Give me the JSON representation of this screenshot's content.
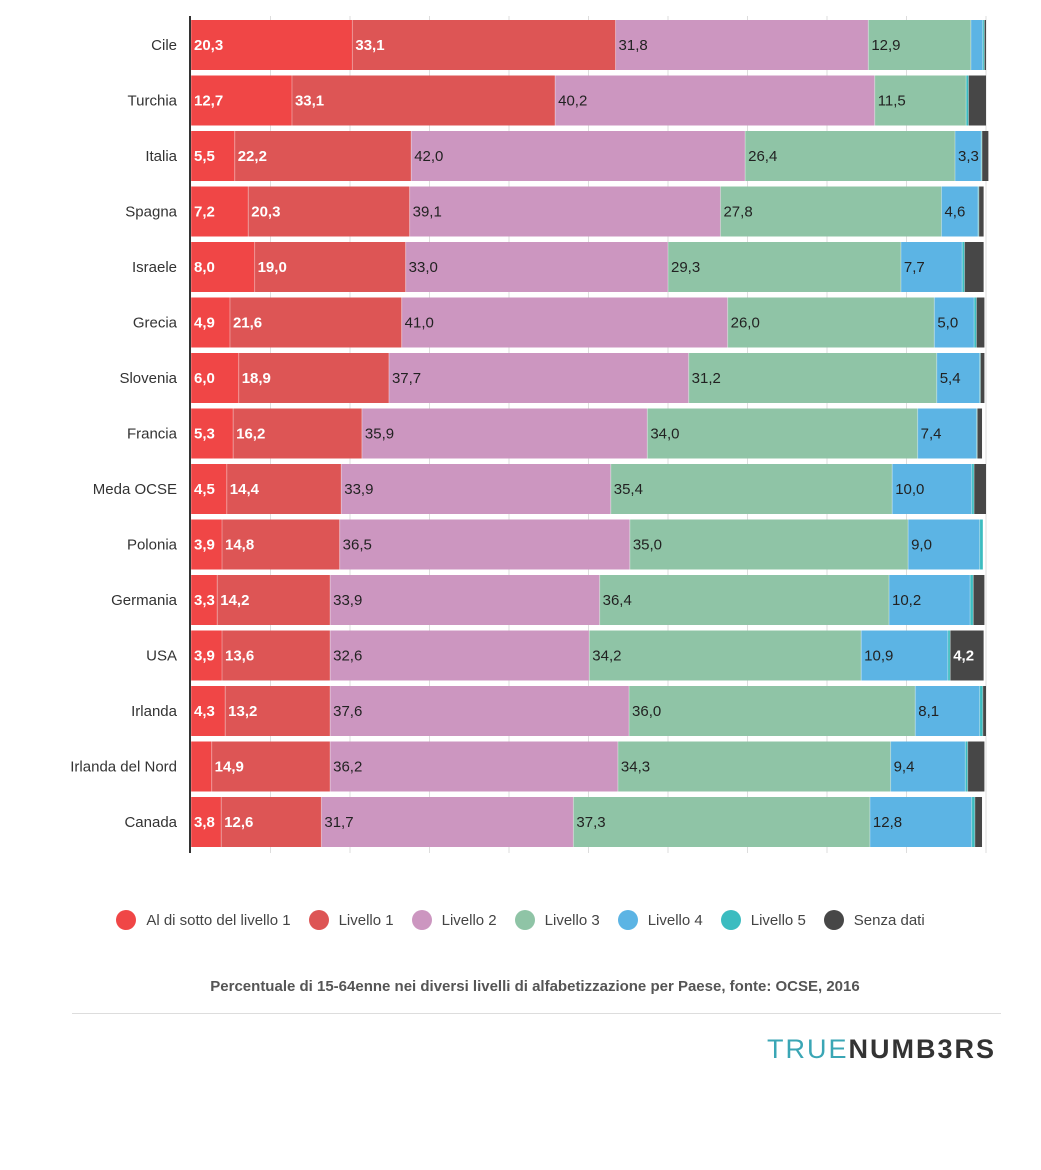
{
  "chart_data": {
    "type": "bar",
    "orientation": "horizontal",
    "stacked": true,
    "title": "",
    "caption": "Percentuale di 15-64enne nei diversi livelli di alfabetizzazione per Paese, fonte: OCSE, 2016",
    "xlabel": "",
    "ylabel": "",
    "xlim": [
      0,
      100
    ],
    "grid": true,
    "legend_position": "bottom",
    "categories": [
      "Cile",
      "Turchia",
      "Italia",
      "Spagna",
      "Israele",
      "Grecia",
      "Slovenia",
      "Francia",
      "Meda OCSE",
      "Polonia",
      "Germania",
      "USA",
      "Irlanda",
      "Irlanda del Nord",
      "Canada"
    ],
    "series": [
      {
        "name": "Al di sotto del livello 1",
        "color": "#f04646",
        "label_color": "#ffffff",
        "values": [
          20.3,
          12.7,
          5.5,
          7.2,
          8.0,
          4.9,
          6.0,
          5.3,
          4.5,
          3.9,
          3.3,
          3.9,
          4.3,
          2.6,
          3.8
        ],
        "labels": [
          "20,3",
          "12,7",
          "5,5",
          "7,2",
          "8,0",
          "4,9",
          "6,0",
          "5,3",
          "4,5",
          "3,9",
          "3,3",
          "3,9",
          "4,3",
          "",
          "3,8"
        ]
      },
      {
        "name": "Livello 1",
        "color": "#dd5555",
        "label_color": "#ffffff",
        "values": [
          33.1,
          33.1,
          22.2,
          20.3,
          19.0,
          21.6,
          18.9,
          16.2,
          14.4,
          14.8,
          14.2,
          13.6,
          13.2,
          14.9,
          12.6
        ],
        "labels": [
          "33,1",
          "33,1",
          "22,2",
          "20,3",
          "19,0",
          "21,6",
          "18,9",
          "16,2",
          "14,4",
          "14,8",
          "14,2",
          "13,6",
          "13,2",
          "14,9",
          "12,6"
        ]
      },
      {
        "name": "Livello 2",
        "color": "#cc96c0",
        "label_color": "#222222",
        "values": [
          31.8,
          40.2,
          42.0,
          39.1,
          33.0,
          41.0,
          37.7,
          35.9,
          33.9,
          36.5,
          33.9,
          32.6,
          37.6,
          36.2,
          31.7
        ],
        "labels": [
          "31,8",
          "40,2",
          "42,0",
          "39,1",
          "33,0",
          "41,0",
          "37,7",
          "35,9",
          "33,9",
          "36,5",
          "33,9",
          "32,6",
          "37,6",
          "36,2",
          "31,7"
        ]
      },
      {
        "name": "Livello 3",
        "color": "#8fc4a6",
        "label_color": "#222222",
        "values": [
          12.9,
          11.5,
          26.4,
          27.8,
          29.3,
          26.0,
          31.2,
          34.0,
          35.4,
          35.0,
          36.4,
          34.2,
          36.0,
          34.3,
          37.3
        ],
        "labels": [
          "12,9",
          "11,5",
          "26,4",
          "27,8",
          "29,3",
          "26,0",
          "31,2",
          "34,0",
          "35,4",
          "35,0",
          "36,4",
          "34,2",
          "36,0",
          "34,3",
          "37,3"
        ]
      },
      {
        "name": "Livello 4",
        "color": "#5cb4e4",
        "label_color": "#222222",
        "values": [
          1.5,
          0.0,
          3.3,
          4.6,
          7.7,
          5.0,
          5.4,
          7.4,
          10.0,
          9.0,
          10.2,
          10.9,
          8.1,
          9.4,
          12.8
        ],
        "labels": [
          "",
          "",
          "3,3",
          "4,6",
          "7,7",
          "5,0",
          "5,4",
          "7,4",
          "10,0",
          "9,0",
          "10,2",
          "10,9",
          "8,1",
          "9,4",
          "12,8"
        ]
      },
      {
        "name": "Livello 5",
        "color": "#3bbcc0",
        "label_color": "#222222",
        "values": [
          0.2,
          0.3,
          0.1,
          0.1,
          0.3,
          0.3,
          0.1,
          0.1,
          0.3,
          0.4,
          0.4,
          0.3,
          0.4,
          0.3,
          0.4
        ],
        "labels": [
          "",
          "",
          "",
          "",
          "",
          "",
          "",
          "",
          "",
          "",
          "",
          "",
          "",
          "",
          ""
        ]
      },
      {
        "name": "Senza dati",
        "color": "#474747",
        "label_color": "#ffffff",
        "values": [
          0.2,
          2.2,
          0.8,
          0.6,
          2.4,
          1.0,
          0.5,
          0.6,
          1.5,
          0.0,
          1.4,
          4.2,
          0.4,
          2.1,
          0.9
        ],
        "labels": [
          "",
          "",
          "",
          "",
          "",
          "",
          "",
          "",
          "",
          "",
          "",
          "4,2",
          "",
          "",
          ""
        ]
      }
    ]
  },
  "legend_items": [
    "Al di sotto del livello 1",
    "Livello 1",
    "Livello 2",
    "Livello 3",
    "Livello 4",
    "Livello 5",
    "Senza dati"
  ],
  "colors": {
    "legend": [
      "#f04646",
      "#dd5555",
      "#cc96c0",
      "#8fc4a6",
      "#5cb4e4",
      "#3bbcc0",
      "#474747"
    ]
  },
  "brand": {
    "part1": "TRUE",
    "part2": "NUMB3RS"
  }
}
